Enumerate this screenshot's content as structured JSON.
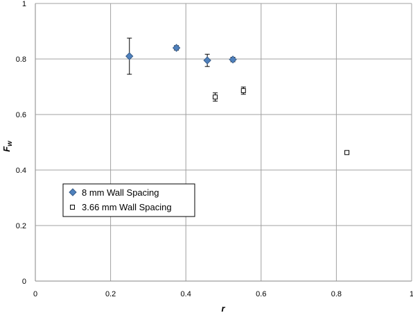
{
  "chart_data": {
    "type": "scatter",
    "title": "",
    "xlabel": "r",
    "ylabel_main": "F",
    "ylabel_sub": "w",
    "xlim": [
      0,
      1
    ],
    "ylim": [
      0,
      1
    ],
    "x_ticks": [
      "0",
      "0.2",
      "0.4",
      "0.6",
      "0.8",
      "1"
    ],
    "y_ticks": [
      "0",
      "0.2",
      "0.4",
      "0.6",
      "0.8",
      "1"
    ],
    "grid": true,
    "legend_position": "lower-left",
    "series": [
      {
        "name": "8 mm Wall Spacing",
        "marker": "diamond",
        "color": "#4f81bd",
        "points": [
          {
            "x": 0.25,
            "y": 0.81,
            "err": 0.065
          },
          {
            "x": 0.375,
            "y": 0.84,
            "err": 0.008
          },
          {
            "x": 0.457,
            "y": 0.795,
            "err": 0.022
          },
          {
            "x": 0.525,
            "y": 0.798,
            "err": 0.008
          }
        ]
      },
      {
        "name": "3.66 mm Wall Spacing",
        "marker": "square",
        "color": "#ffffff",
        "points": [
          {
            "x": 0.478,
            "y": 0.663,
            "err": 0.015
          },
          {
            "x": 0.553,
            "y": 0.686,
            "err": 0.013
          },
          {
            "x": 0.828,
            "y": 0.463,
            "err": 0.005
          }
        ]
      }
    ]
  }
}
